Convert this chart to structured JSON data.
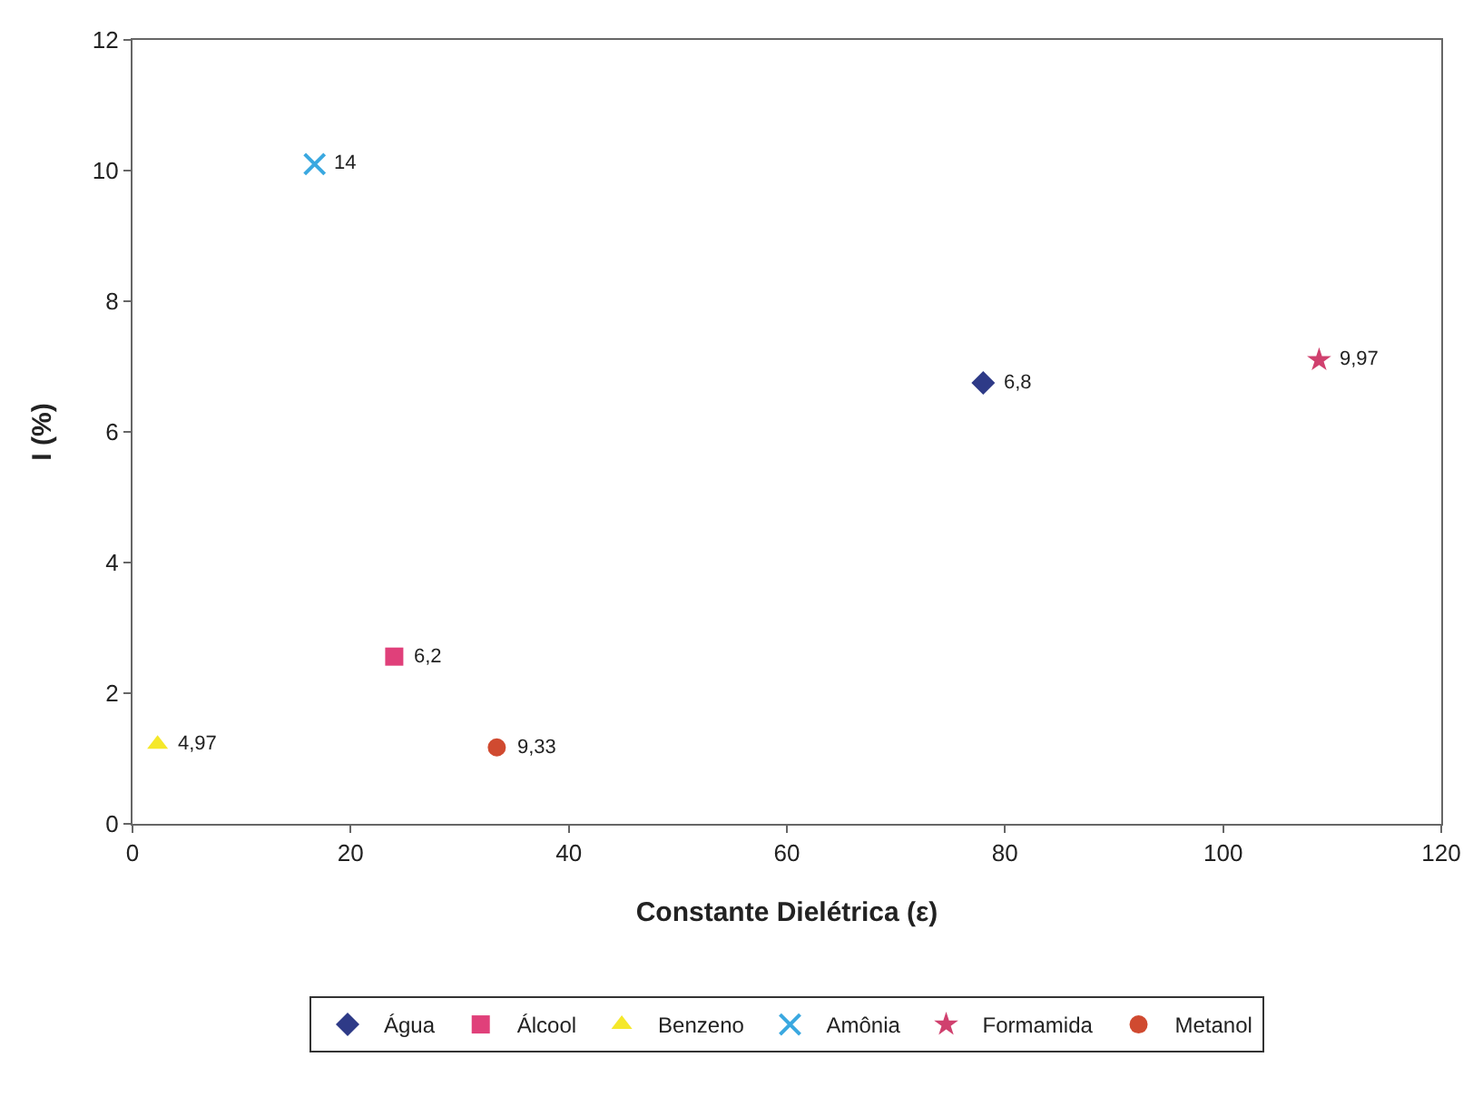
{
  "chart_data": {
    "type": "scatter",
    "xlabel": "Constante Dielétrica (ε)",
    "ylabel": "I (%)",
    "xlim": [
      0,
      120
    ],
    "xticks": [
      0,
      20,
      40,
      60,
      80,
      100,
      120
    ],
    "ylim": [
      0,
      12
    ],
    "yticks": [
      0,
      2,
      4,
      6,
      8,
      10,
      12
    ],
    "grid": false,
    "legend": "bottom",
    "series": [
      {
        "name": "Água",
        "color": "#2e3a87",
        "marker": "diamond",
        "x": [
          78
        ],
        "values": [
          6.75
        ]
      },
      {
        "name": "Álcool",
        "color": "#e0407a",
        "marker": "square",
        "x": [
          24
        ],
        "values": [
          2.56
        ]
      },
      {
        "name": "Benzeno",
        "color": "#f5e82a",
        "marker": "triangle",
        "x": [
          2.3
        ],
        "values": [
          1.22
        ]
      },
      {
        "name": "Amônia",
        "color": "#3aa8e0",
        "marker": "cross",
        "x": [
          16.7
        ],
        "values": [
          10.1
        ]
      },
      {
        "name": "Formamida",
        "color": "#d0406e",
        "marker": "star",
        "x": [
          108.8
        ],
        "values": [
          7.1
        ]
      },
      {
        "name": "Metanol",
        "color": "#d04a30",
        "marker": "circle",
        "x": [
          33.4
        ],
        "values": [
          1.17
        ]
      }
    ],
    "annotations": [
      {
        "text": "6,8",
        "x": 78,
        "y": 6.75
      },
      {
        "text": "6,2",
        "x": 24,
        "y": 2.56
      },
      {
        "text": "4,97",
        "x": 2.3,
        "y": 1.22
      },
      {
        "text": "14",
        "x": 16.7,
        "y": 10.1
      },
      {
        "text": "9,97",
        "x": 108.8,
        "y": 7.1
      },
      {
        "text": "9,33",
        "x": 33.4,
        "y": 1.17
      }
    ]
  }
}
